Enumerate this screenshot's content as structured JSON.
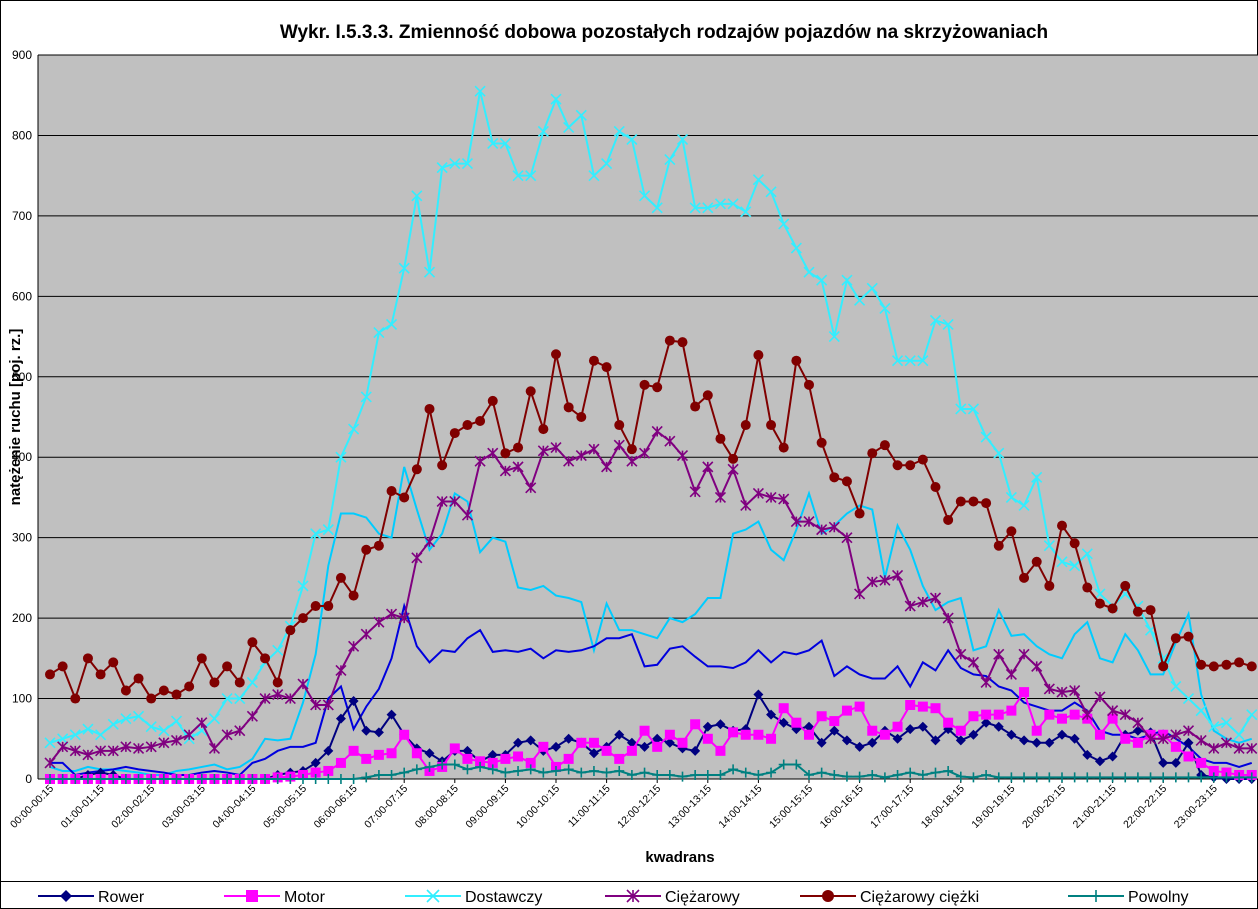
{
  "chart_data": {
    "type": "line",
    "title": "Wykr. I.5.3.3. Zmienność dobowa pozostałych rodzajów pojazdów na skrzyżowaniach",
    "y_label": "natężenie ruchu [poj. rz.]",
    "x_label": "kwadrans",
    "ylim": [
      0,
      900
    ],
    "yticks": [
      0,
      100,
      200,
      300,
      400,
      500,
      600,
      700,
      800,
      900
    ],
    "grid": true,
    "legend": "bottom",
    "categories": [
      "00:00-00:15",
      null,
      null,
      null,
      "01:00-01:15",
      null,
      null,
      null,
      "02:00-02:15",
      null,
      null,
      null,
      "03:00-03:15",
      null,
      null,
      null,
      "04:00-04:15",
      null,
      null,
      null,
      "05:00-05:15",
      null,
      null,
      null,
      "06:00-06:15",
      null,
      null,
      null,
      "07:00-07:15",
      null,
      null,
      null,
      "08:00-08:15",
      null,
      null,
      null,
      "09:00-09:15",
      null,
      null,
      null,
      "10:00-10:15",
      null,
      null,
      null,
      "11:00-11:15",
      null,
      null,
      null,
      "12:00-12:15",
      null,
      null,
      null,
      "13:00-13:15",
      null,
      null,
      null,
      "14:00-14:15",
      null,
      null,
      null,
      "15:00-15:15",
      null,
      null,
      null,
      "16:00-16:15",
      null,
      null,
      null,
      "17:00-17:15",
      null,
      null,
      null,
      "18:00-18:15",
      null,
      null,
      null,
      "19:00-19:15",
      null,
      null,
      null,
      "20:00-20:15",
      null,
      null,
      null,
      "21:00-21:15",
      null,
      null,
      null,
      "22:00-22:15",
      null,
      null,
      null,
      "23:00-23:15",
      null,
      null,
      null
    ],
    "series": [
      {
        "color": "#00ccff",
        "values": [
          15,
          10,
          10,
          15,
          12,
          12,
          10,
          8,
          5,
          5,
          10,
          12,
          15,
          18,
          12,
          15,
          25,
          50,
          48,
          50,
          95,
          155,
          265,
          330,
          330,
          325,
          305,
          300,
          388,
          335,
          285,
          305,
          355,
          345,
          282,
          300,
          295,
          238,
          235,
          240,
          228,
          225,
          220,
          160,
          218,
          185,
          185,
          180,
          175,
          200,
          195,
          205,
          225,
          225,
          305,
          310,
          320,
          285,
          272,
          310,
          355,
          305,
          315,
          330,
          340,
          335,
          250,
          315,
          285,
          240,
          210,
          220,
          225,
          160,
          165,
          210,
          178,
          180,
          165,
          155,
          150,
          180,
          195,
          150,
          145,
          180,
          160,
          130,
          130,
          170,
          205,
          105,
          60,
          50,
          45,
          50
        ]
      },
      {
        "color": "#0000dd",
        "values": [
          20,
          20,
          5,
          8,
          10,
          12,
          15,
          12,
          10,
          8,
          5,
          5,
          8,
          10,
          8,
          5,
          20,
          25,
          35,
          40,
          40,
          45,
          100,
          115,
          62,
          90,
          112,
          150,
          215,
          165,
          145,
          160,
          158,
          175,
          185,
          158,
          160,
          158,
          162,
          150,
          160,
          158,
          160,
          165,
          175,
          175,
          180,
          140,
          142,
          162,
          165,
          152,
          140,
          140,
          138,
          145,
          160,
          145,
          158,
          155,
          160,
          172,
          128,
          140,
          130,
          125,
          125,
          140,
          115,
          145,
          135,
          160,
          138,
          130,
          128,
          115,
          110,
          95,
          90,
          85,
          85,
          95,
          85,
          60,
          55,
          55,
          50,
          55,
          60,
          50,
          40,
          25,
          20,
          20,
          15,
          20
        ]
      },
      {
        "name": "Rower",
        "color": "#000080",
        "marker": "diamond",
        "values": [
          0,
          0,
          0,
          5,
          8,
          5,
          0,
          0,
          0,
          0,
          0,
          0,
          0,
          0,
          0,
          0,
          0,
          0,
          5,
          8,
          10,
          20,
          35,
          75,
          97,
          60,
          58,
          80,
          55,
          38,
          32,
          22,
          35,
          35,
          22,
          30,
          30,
          45,
          48,
          35,
          40,
          50,
          45,
          32,
          40,
          55,
          45,
          40,
          50,
          45,
          38,
          35,
          65,
          68,
          60,
          62,
          105,
          80,
          70,
          62,
          65,
          45,
          60,
          48,
          40,
          45,
          60,
          50,
          62,
          65,
          48,
          62,
          48,
          55,
          70,
          65,
          55,
          48,
          45,
          45,
          55,
          50,
          30,
          22,
          28,
          55,
          60,
          58,
          20,
          20,
          45,
          5,
          2,
          0,
          0,
          0
        ]
      },
      {
        "name": "Motor",
        "color": "#ff00ff",
        "marker": "square",
        "values": [
          0,
          0,
          0,
          0,
          0,
          0,
          0,
          0,
          0,
          0,
          0,
          0,
          0,
          0,
          0,
          0,
          0,
          0,
          2,
          3,
          5,
          8,
          10,
          20,
          35,
          25,
          30,
          32,
          55,
          32,
          10,
          15,
          38,
          25,
          22,
          20,
          25,
          28,
          20,
          40,
          15,
          25,
          45,
          45,
          35,
          25,
          35,
          60,
          40,
          55,
          45,
          68,
          50,
          35,
          58,
          55,
          55,
          50,
          88,
          70,
          55,
          78,
          72,
          85,
          90,
          60,
          55,
          65,
          92,
          90,
          88,
          70,
          60,
          78,
          80,
          80,
          85,
          108,
          60,
          80,
          75,
          80,
          75,
          55,
          75,
          50,
          45,
          55,
          55,
          40,
          28,
          20,
          10,
          8,
          5,
          5
        ]
      },
      {
        "name": "Dostawczy",
        "color": "#33eeff",
        "marker": "x",
        "values": [
          45,
          50,
          55,
          62,
          55,
          68,
          75,
          78,
          65,
          60,
          72,
          50,
          60,
          75,
          100,
          100,
          120,
          145,
          160,
          190,
          240,
          305,
          310,
          400,
          435,
          475,
          555,
          565,
          635,
          725,
          630,
          760,
          765,
          765,
          855,
          790,
          790,
          750,
          750,
          805,
          845,
          810,
          825,
          750,
          765,
          805,
          795,
          725,
          710,
          770,
          795,
          710,
          710,
          715,
          715,
          705,
          745,
          730,
          690,
          660,
          630,
          620,
          550,
          620,
          595,
          610,
          585,
          520,
          520,
          520,
          570,
          565,
          460,
          460,
          425,
          405,
          350,
          340,
          375,
          290,
          270,
          265,
          280,
          230,
          215,
          230,
          215,
          185,
          150,
          115,
          100,
          85,
          65,
          70,
          55,
          80
        ]
      },
      {
        "name": "Ciężarowy",
        "color": "#800080",
        "marker": "star",
        "values": [
          20,
          40,
          35,
          30,
          35,
          35,
          40,
          38,
          40,
          45,
          48,
          55,
          70,
          38,
          55,
          60,
          78,
          100,
          105,
          100,
          118,
          92,
          92,
          135,
          165,
          180,
          195,
          205,
          200,
          275,
          295,
          345,
          345,
          328,
          395,
          405,
          383,
          388,
          362,
          408,
          412,
          395,
          402,
          410,
          388,
          415,
          395,
          405,
          432,
          420,
          402,
          357,
          388,
          350,
          385,
          340,
          355,
          350,
          348,
          320,
          320,
          310,
          313,
          300,
          230,
          245,
          247,
          253,
          215,
          220,
          225,
          200,
          155,
          145,
          120,
          155,
          130,
          155,
          140,
          112,
          108,
          110,
          80,
          102,
          85,
          80,
          70,
          50,
          50,
          55,
          60,
          48,
          38,
          45,
          38,
          38
        ]
      },
      {
        "name": "Ciężarowy ciężki",
        "color": "#800000",
        "marker": "circle",
        "values": [
          130,
          140,
          100,
          150,
          130,
          145,
          110,
          125,
          100,
          110,
          105,
          115,
          150,
          120,
          140,
          120,
          170,
          150,
          120,
          185,
          200,
          215,
          215,
          250,
          228,
          285,
          290,
          358,
          350,
          385,
          460,
          390,
          430,
          440,
          445,
          470,
          405,
          412,
          482,
          435,
          528,
          462,
          450,
          520,
          512,
          440,
          410,
          490,
          487,
          545,
          543,
          463,
          477,
          423,
          398,
          440,
          527,
          440,
          412,
          520,
          490,
          418,
          375,
          370,
          330,
          405,
          415,
          390,
          390,
          397,
          363,
          322,
          345,
          345,
          343,
          290,
          308,
          250,
          270,
          240,
          315,
          293,
          238,
          218,
          212,
          240,
          208,
          210,
          140,
          175,
          177,
          142,
          140,
          142,
          145,
          140
        ]
      },
      {
        "name": "Powolny",
        "color": "#008080",
        "marker": "plus",
        "values": [
          0,
          0,
          0,
          0,
          0,
          0,
          0,
          0,
          0,
          0,
          0,
          0,
          0,
          0,
          0,
          0,
          0,
          0,
          0,
          0,
          0,
          0,
          0,
          0,
          0,
          2,
          5,
          5,
          8,
          12,
          15,
          18,
          18,
          12,
          15,
          12,
          8,
          10,
          12,
          8,
          10,
          12,
          8,
          10,
          8,
          10,
          5,
          8,
          5,
          5,
          3,
          5,
          5,
          5,
          12,
          8,
          5,
          8,
          18,
          18,
          5,
          8,
          5,
          3,
          3,
          5,
          2,
          5,
          8,
          5,
          8,
          10,
          3,
          2,
          5,
          2,
          2,
          2,
          2,
          2,
          2,
          2,
          2,
          2,
          2,
          2,
          2,
          2,
          2,
          2,
          2,
          2,
          2,
          2,
          2,
          2
        ]
      }
    ]
  }
}
